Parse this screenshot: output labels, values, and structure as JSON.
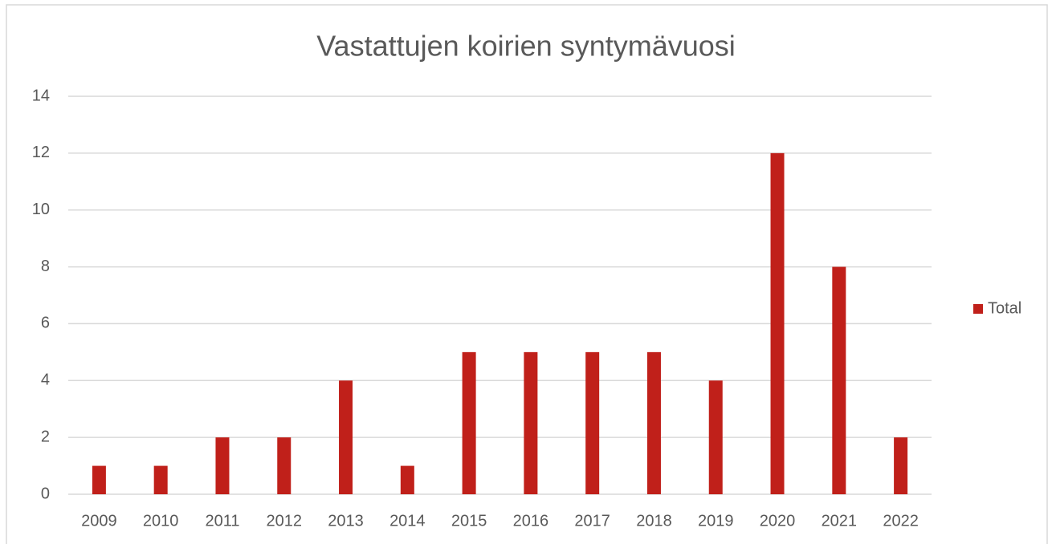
{
  "chart_data": {
    "type": "bar",
    "title": "Vastattujen koirien syntymävuosi",
    "categories": [
      "2009",
      "2010",
      "2011",
      "2012",
      "2013",
      "2014",
      "2015",
      "2016",
      "2017",
      "2018",
      "2019",
      "2020",
      "2021",
      "2022"
    ],
    "series": [
      {
        "name": "Total",
        "color": "#c0201a",
        "values": [
          1,
          1,
          2,
          2,
          4,
          1,
          5,
          5,
          5,
          5,
          4,
          12,
          8,
          2
        ]
      }
    ],
    "ylim": [
      0,
      14
    ],
    "yticks": [
      0,
      2,
      4,
      6,
      8,
      10,
      12,
      14
    ],
    "grid": true,
    "legend": "right"
  }
}
